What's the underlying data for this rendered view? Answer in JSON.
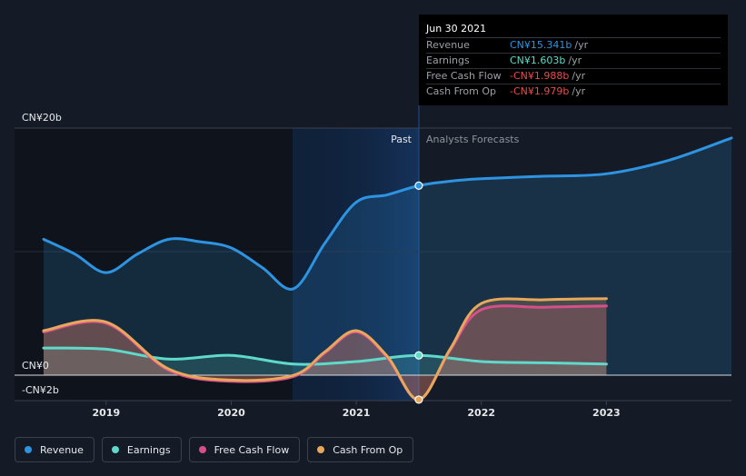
{
  "chart_data": {
    "type": "line",
    "currency": "CN¥",
    "y_unit": "billions",
    "ylim": [
      -2,
      20
    ],
    "y_axis_labels": [
      {
        "value": 20,
        "label": "CN¥20b"
      },
      {
        "value": 0,
        "label": "CN¥0"
      },
      {
        "value": -2,
        "label": "-CN¥2b"
      }
    ],
    "x_ticks": [
      {
        "t": 2019,
        "label": "2019"
      },
      {
        "t": 2020,
        "label": "2020"
      },
      {
        "t": 2021,
        "label": "2021"
      },
      {
        "t": 2022,
        "label": "2022"
      },
      {
        "t": 2023,
        "label": "2023"
      }
    ],
    "xlim": [
      2018.5,
      2024
    ],
    "forecast_start": 2021.5,
    "section_labels": {
      "past": "Past",
      "forecast": "Analysts Forecasts"
    },
    "series": [
      {
        "name": "Revenue",
        "color": "#2e93e0",
        "points": [
          [
            2018.5,
            11.0
          ],
          [
            2018.75,
            9.8
          ],
          [
            2019.0,
            8.3
          ],
          [
            2019.25,
            9.8
          ],
          [
            2019.5,
            11.0
          ],
          [
            2019.75,
            10.8
          ],
          [
            2020.0,
            10.3
          ],
          [
            2020.25,
            8.7
          ],
          [
            2020.5,
            7.0
          ],
          [
            2020.75,
            10.7
          ],
          [
            2021.0,
            14.0
          ],
          [
            2021.25,
            14.6
          ],
          [
            2021.5,
            15.341
          ],
          [
            2021.75,
            15.7
          ],
          [
            2022.0,
            15.9
          ],
          [
            2022.5,
            16.1
          ],
          [
            2023.0,
            16.3
          ],
          [
            2023.5,
            17.4
          ],
          [
            2024.0,
            19.2
          ]
        ],
        "highlight": [
          2021.5,
          15.341
        ]
      },
      {
        "name": "Earnings",
        "color": "#5fd9c9",
        "points": [
          [
            2018.5,
            2.2
          ],
          [
            2019.0,
            2.1
          ],
          [
            2019.5,
            1.3
          ],
          [
            2020.0,
            1.6
          ],
          [
            2020.5,
            0.9
          ],
          [
            2021.0,
            1.1
          ],
          [
            2021.5,
            1.603
          ],
          [
            2022.0,
            1.1
          ],
          [
            2022.5,
            1.0
          ],
          [
            2023.0,
            0.9
          ]
        ],
        "highlight": [
          2021.5,
          1.603
        ]
      },
      {
        "name": "Free Cash Flow",
        "color": "#d5508a",
        "points": [
          [
            2018.5,
            3.5
          ],
          [
            2019.0,
            4.2
          ],
          [
            2019.5,
            0.4
          ],
          [
            2020.0,
            -0.5
          ],
          [
            2020.5,
            -0.1
          ],
          [
            2020.75,
            1.8
          ],
          [
            2021.0,
            3.5
          ],
          [
            2021.25,
            1.4
          ],
          [
            2021.5,
            -1.988
          ],
          [
            2021.75,
            2.0
          ],
          [
            2022.0,
            5.3
          ],
          [
            2022.5,
            5.5
          ],
          [
            2023.0,
            5.6
          ]
        ]
      },
      {
        "name": "Cash From Op",
        "color": "#e8a85c",
        "points": [
          [
            2018.5,
            3.6
          ],
          [
            2019.0,
            4.3
          ],
          [
            2019.5,
            0.5
          ],
          [
            2020.0,
            -0.4
          ],
          [
            2020.5,
            0.0
          ],
          [
            2020.75,
            1.9
          ],
          [
            2021.0,
            3.6
          ],
          [
            2021.25,
            1.5
          ],
          [
            2021.5,
            -1.979
          ],
          [
            2021.75,
            2.1
          ],
          [
            2022.0,
            5.8
          ],
          [
            2022.5,
            6.1
          ],
          [
            2023.0,
            6.2
          ]
        ],
        "highlight": [
          2021.5,
          -1.979
        ]
      }
    ]
  },
  "tooltip": {
    "date": "Jun 30 2021",
    "rows": [
      {
        "label": "Revenue",
        "value": "CN¥15.341b",
        "unit": "/yr",
        "color": "#2e93e0"
      },
      {
        "label": "Earnings",
        "value": "CN¥1.603b",
        "unit": "/yr",
        "color": "#5fd9c9"
      },
      {
        "label": "Free Cash Flow",
        "value": "-CN¥1.988b",
        "unit": "/yr",
        "color": "#e84b4b"
      },
      {
        "label": "Cash From Op",
        "value": "-CN¥1.979b",
        "unit": "/yr",
        "color": "#e84b4b"
      }
    ]
  },
  "legend": [
    {
      "label": "Revenue",
      "color": "#2e93e0"
    },
    {
      "label": "Earnings",
      "color": "#5fd9c9"
    },
    {
      "label": "Free Cash Flow",
      "color": "#d5508a"
    },
    {
      "label": "Cash From Op",
      "color": "#e8a85c"
    }
  ]
}
